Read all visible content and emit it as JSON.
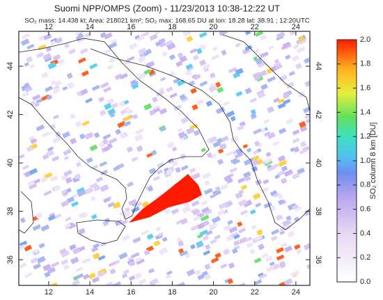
{
  "map": {
    "title": "Suomi NPP/OMPS (Zoom) - 11/23/2013 10:38-12:22 UT",
    "subtitle": "SO₂ mass: 14.438 kt; Area: 218021 km²; SO₂ max: 168.65 DU at lon: 18.28 lat: 38.91 ; 12:20UTC",
    "lonlim": [
      10.55,
      24.68
    ],
    "lonticks": [
      12,
      14,
      16,
      18,
      20,
      22,
      24
    ],
    "latlim": [
      34.94,
      45.44
    ],
    "latticks": [
      36,
      38,
      40,
      42,
      44
    ],
    "colorbar": {
      "label": "SO₂ column 8 km [DU]",
      "lim": [
        0,
        2
      ],
      "ticks": [
        {
          "value": 0,
          "label": "0.0"
        },
        {
          "value": 0.2,
          "label": "0.2"
        },
        {
          "value": 0.4,
          "label": "0.4"
        },
        {
          "value": 0.6,
          "label": "0.6"
        },
        {
          "value": 0.8,
          "label": "0.8"
        },
        {
          "value": 1,
          "label": "1.0"
        },
        {
          "value": 1.2,
          "label": "1.2"
        },
        {
          "value": 1.4,
          "label": "1.4"
        },
        {
          "value": 1.6,
          "label": "1.6"
        },
        {
          "value": 1.8,
          "label": "1.8"
        },
        {
          "value": 2,
          "label": "2.0"
        }
      ]
    }
  }
}
